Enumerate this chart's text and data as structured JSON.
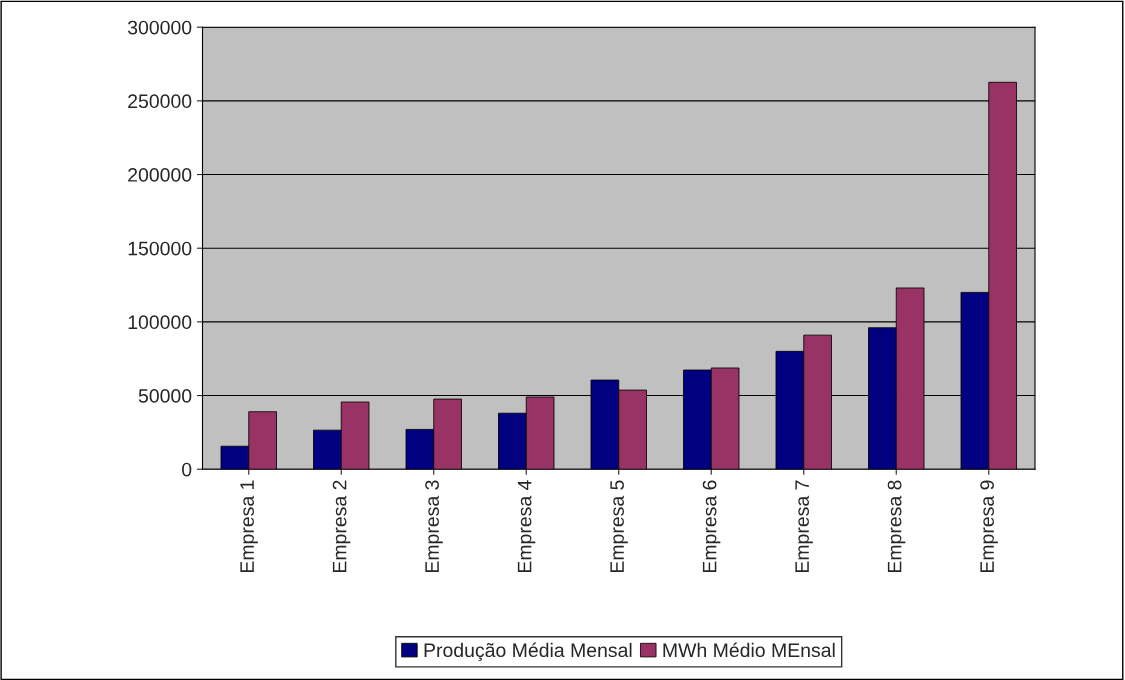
{
  "chart_data": {
    "type": "bar",
    "categories": [
      "Empresa 1",
      "Empresa 2",
      "Empresa 3",
      "Empresa 4",
      "Empresa 5",
      "Empresa 6",
      "Empresa 7",
      "Empresa 8",
      "Empresa 9"
    ],
    "series": [
      {
        "name": "Produção Média Mensal",
        "color": "#000080",
        "values": [
          15600,
          26500,
          27000,
          38000,
          60500,
          67300,
          80000,
          96000,
          120000
        ]
      },
      {
        "name": "MWh Médio MEnsal",
        "color": "#993366",
        "values": [
          39000,
          45600,
          47600,
          49000,
          53700,
          68700,
          91000,
          123000,
          262600
        ]
      }
    ],
    "ylim": [
      0,
      300000
    ],
    "yticks": [
      0,
      50000,
      100000,
      150000,
      200000,
      250000,
      300000
    ],
    "grid": "y",
    "legend": "bottom"
  }
}
